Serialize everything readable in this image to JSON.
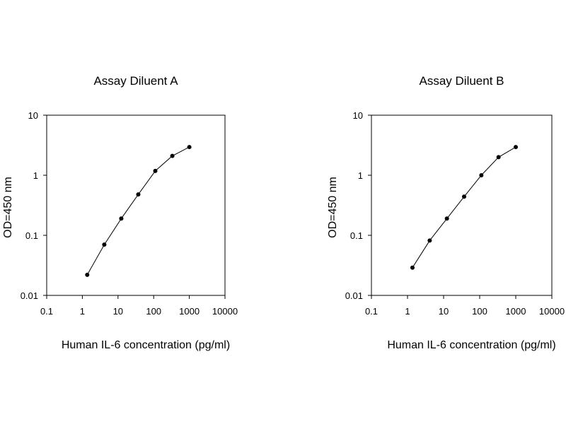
{
  "chart_data": [
    {
      "type": "line",
      "title": "Assay Diluent A",
      "xlabel": "Human IL-6 concentration (pg/ml)",
      "ylabel": "OD=450 nm",
      "xscale": "log",
      "yscale": "log",
      "xlim": [
        0.1,
        10000
      ],
      "ylim": [
        0.01,
        10
      ],
      "xticks": [
        "0.1",
        "1",
        "10",
        "100",
        "1000",
        "10000"
      ],
      "yticks": [
        "0.01",
        "0.1",
        "1",
        "10"
      ],
      "grid": false,
      "series": [
        {
          "x": [
            1.37,
            4.12,
            12.35,
            37.04,
            111.1,
            333.3,
            1000
          ],
          "y": [
            0.022,
            0.07,
            0.19,
            0.48,
            1.18,
            2.1,
            2.95
          ]
        }
      ]
    },
    {
      "type": "line",
      "title": "Assay Diluent B",
      "xlabel": "Human IL-6 concentration (pg/ml)",
      "ylabel": "OD=450 nm",
      "xscale": "log",
      "yscale": "log",
      "xlim": [
        0.1,
        10000
      ],
      "ylim": [
        0.01,
        10
      ],
      "xticks": [
        "0.1",
        "1",
        "10",
        "100",
        "1000",
        "10000"
      ],
      "yticks": [
        "0.01",
        "0.1",
        "1",
        "10"
      ],
      "grid": false,
      "series": [
        {
          "x": [
            1.37,
            4.12,
            12.35,
            37.04,
            111.1,
            333.3,
            1000
          ],
          "y": [
            0.029,
            0.082,
            0.19,
            0.44,
            1.0,
            2.0,
            2.95
          ]
        }
      ]
    }
  ]
}
